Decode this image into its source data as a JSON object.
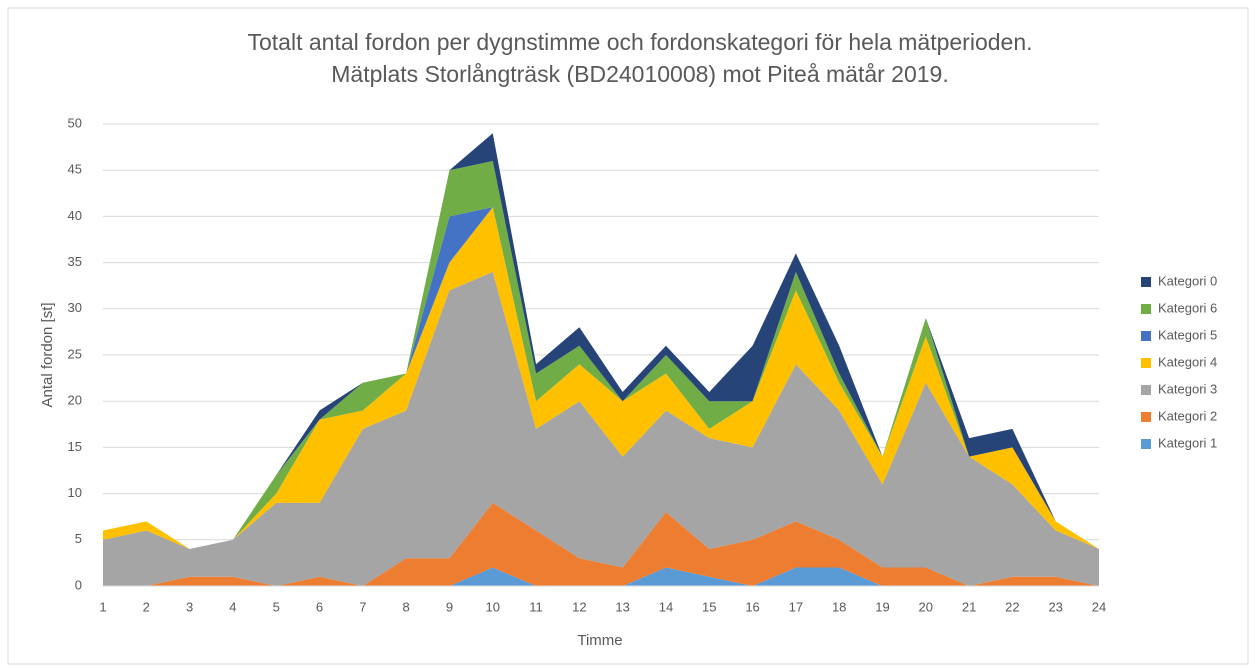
{
  "chart_data": {
    "type": "stacked_area",
    "title": [
      "Totalt antal fordon per dygnstimme och fordonskategori för hela mätperioden.",
      "Mätplats Storlångträsk (BD24010008) mot Piteå mätår 2019."
    ],
    "x_label": "Timme",
    "y_label": "Antal fordon [st]",
    "categories": [
      "1",
      "2",
      "3",
      "4",
      "5",
      "6",
      "7",
      "8",
      "9",
      "10",
      "11",
      "12",
      "13",
      "14",
      "15",
      "16",
      "17",
      "18",
      "19",
      "20",
      "21",
      "22",
      "23",
      "24"
    ],
    "series": [
      {
        "name": "Kategori 1",
        "color": "#5b9bd5",
        "values": [
          0,
          0,
          0,
          0,
          0,
          0,
          0,
          0,
          0,
          2,
          0,
          0,
          0,
          2,
          1,
          0,
          2,
          2,
          0,
          0,
          0,
          0,
          0,
          0
        ]
      },
      {
        "name": "Kategori 2",
        "color": "#ed7d31",
        "values": [
          0,
          0,
          1,
          1,
          0,
          1,
          0,
          3,
          3,
          7,
          6,
          3,
          2,
          6,
          3,
          5,
          5,
          3,
          2,
          2,
          0,
          1,
          1,
          0
        ]
      },
      {
        "name": "Kategori 3",
        "color": "#a5a5a5",
        "values": [
          5,
          6,
          3,
          4,
          9,
          8,
          17,
          16,
          29,
          25,
          11,
          17,
          12,
          11,
          12,
          10,
          17,
          14,
          9,
          20,
          14,
          10,
          5,
          4
        ]
      },
      {
        "name": "Kategori 4",
        "color": "#ffc000",
        "values": [
          1,
          1,
          0,
          0,
          1,
          9,
          2,
          4,
          3,
          7,
          3,
          4,
          6,
          4,
          1,
          5,
          8,
          3,
          3,
          5,
          0,
          4,
          1,
          0
        ]
      },
      {
        "name": "Kategori 5",
        "color": "#4472c4",
        "values": [
          0,
          0,
          0,
          0,
          0,
          0,
          0,
          0,
          5,
          0,
          0,
          0,
          0,
          0,
          0,
          0,
          0,
          0,
          0,
          0,
          0,
          0,
          0,
          0
        ]
      },
      {
        "name": "Kategori 6",
        "color": "#70ad47",
        "values": [
          0,
          0,
          0,
          0,
          2,
          0,
          3,
          0,
          5,
          5,
          3,
          2,
          0,
          2,
          3,
          0,
          2,
          1,
          0,
          2,
          0,
          0,
          0,
          0
        ]
      },
      {
        "name": "Kategori 0",
        "color": "#264478",
        "values": [
          0,
          0,
          0,
          0,
          0,
          1,
          0,
          0,
          0,
          3,
          1,
          2,
          1,
          1,
          1,
          6,
          2,
          3,
          0,
          0,
          2,
          2,
          0,
          0
        ]
      }
    ],
    "ylim": [
      0,
      50
    ],
    "yticks": [
      0,
      5,
      10,
      15,
      20,
      25,
      30,
      35,
      40,
      45,
      50
    ],
    "grid": true,
    "legend": "right"
  }
}
